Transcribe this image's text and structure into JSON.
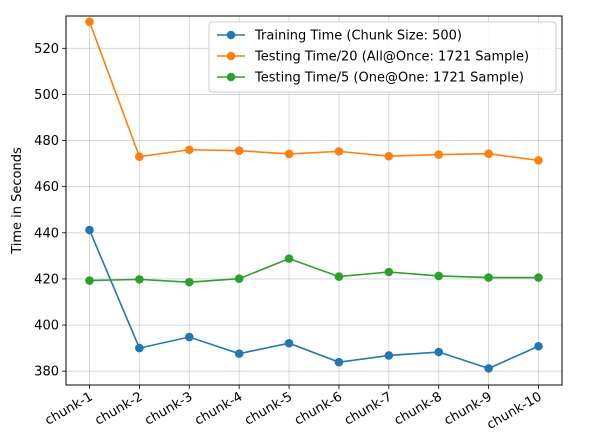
{
  "chart_data": {
    "type": "line",
    "title": "",
    "xlabel": "",
    "ylabel": "Time in Seconds",
    "categories": [
      "chunk-1",
      "chunk-2",
      "chunk-3",
      "chunk-4",
      "chunk-5",
      "chunk-6",
      "chunk-7",
      "chunk-8",
      "chunk-9",
      "chunk-10"
    ],
    "ylim": [
      374,
      534
    ],
    "yticks": [
      380,
      400,
      420,
      440,
      460,
      480,
      500,
      520
    ],
    "grid": true,
    "legend_position": "top-right",
    "x_tick_rotation_deg": 30,
    "series": [
      {
        "name": "Training Time (Chunk Size: 500)",
        "color": "#1f77b4",
        "marker": "circle",
        "values": [
          441.2,
          390.0,
          394.8,
          387.6,
          392.1,
          383.9,
          386.8,
          388.3,
          381.2,
          390.8
        ]
      },
      {
        "name": "Testing Time/20 (All@Once: 1721 Sample)",
        "color": "#ff7f0e",
        "marker": "circle",
        "values": [
          531.5,
          473.0,
          476.0,
          475.6,
          474.2,
          475.3,
          473.2,
          473.9,
          474.3,
          471.4
        ]
      },
      {
        "name": "Testing Time/5 (One@One: 1721 Sample)",
        "color": "#2ca02c",
        "marker": "circle",
        "values": [
          419.3,
          419.8,
          418.6,
          420.1,
          428.8,
          421.0,
          423.0,
          421.3,
          420.6,
          420.6
        ]
      }
    ]
  }
}
